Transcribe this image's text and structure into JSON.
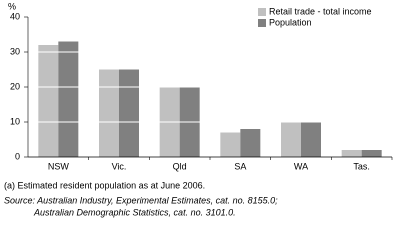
{
  "chart_data": {
    "type": "bar",
    "y_label": "%",
    "categories": [
      "NSW",
      "Vic.",
      "Qld",
      "SA",
      "WA",
      "Tas."
    ],
    "series": [
      {
        "name": "Retail trade - total income",
        "color": "#c0c0c0",
        "values": [
          32,
          25,
          20,
          7,
          10,
          2
        ]
      },
      {
        "name": "Population",
        "color": "#808080",
        "values": [
          33,
          25,
          20,
          8,
          10,
          2
        ]
      }
    ],
    "ylim": [
      0,
      40
    ],
    "yticks": [
      0,
      10,
      20,
      30,
      40
    ],
    "grid": true,
    "notes": [
      "(a) Estimated resident population as at June 2006."
    ],
    "source": [
      "Source: Australian Industry, Experimental Estimates, cat. no. 8155.0;",
      "Australian Demographic Statistics, cat. no. 3101.0."
    ]
  }
}
